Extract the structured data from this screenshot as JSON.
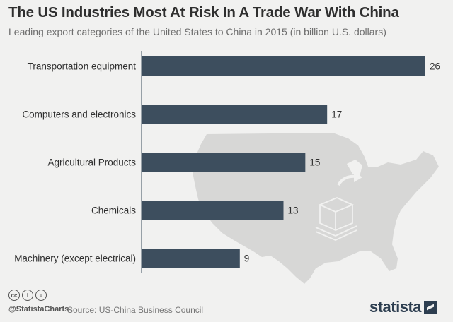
{
  "header": {
    "title": "The US Industries Most At Risk In A Trade War With China",
    "subtitle": "Leading export categories of the United States to China in 2015 (in billion U.S. dollars)"
  },
  "chart_data": {
    "type": "bar",
    "orientation": "horizontal",
    "title": "The US Industries Most At Risk In A Trade War With China",
    "subtitle": "Leading export categories of the United States to China in 2015 (in billion U.S. dollars)",
    "categories": [
      "Transportation equipment",
      "Computers and electronics",
      "Agricultural Products",
      "Chemicals",
      "Machinery (except electrical)"
    ],
    "values": [
      26,
      17,
      15,
      13,
      9
    ],
    "xlim": [
      0,
      26
    ],
    "xlabel": "",
    "ylabel": "",
    "grid": false,
    "bar_color": "#3d4e5e"
  },
  "footer": {
    "cc_icons": [
      "cc",
      "i",
      "="
    ],
    "handle": "@StatistaCharts",
    "source": "Source: US-China Business Council",
    "brand": "statista"
  },
  "colors": {
    "background": "#f1f1f0",
    "bar": "#3d4e5e",
    "map": "#d7d7d6"
  }
}
